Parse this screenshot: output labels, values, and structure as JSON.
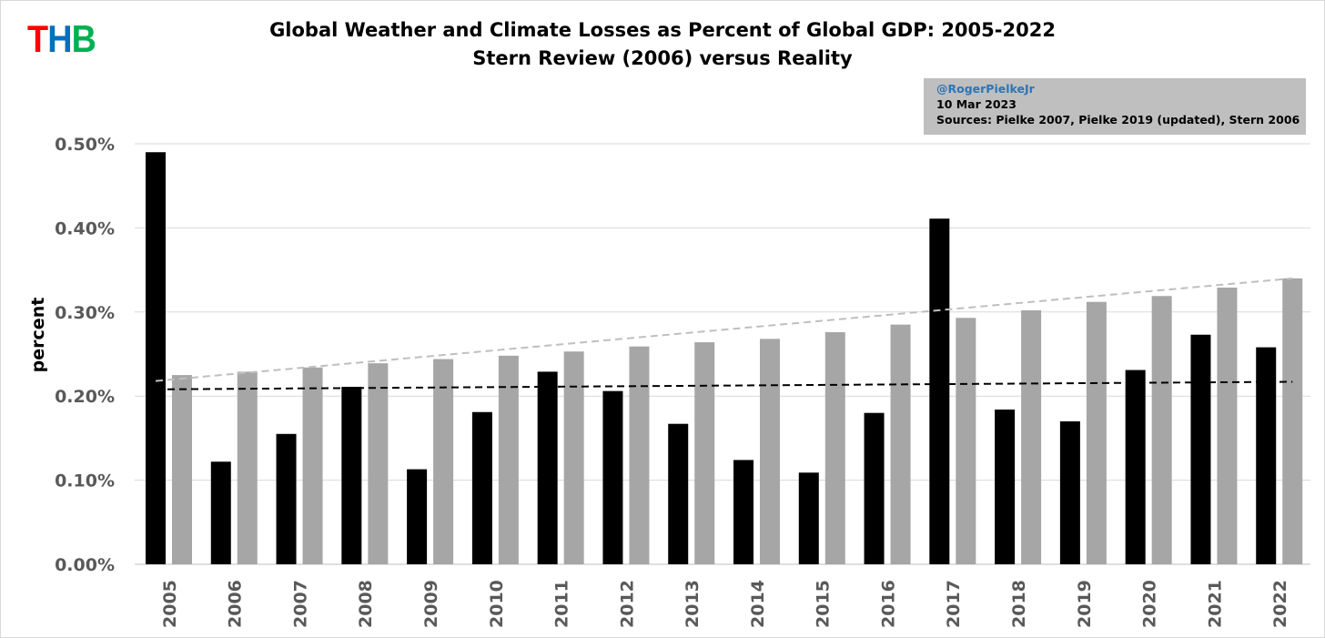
{
  "logo": {
    "t": "T",
    "h": "H",
    "b": "B",
    "colors": {
      "t": "#ff0000",
      "h": "#0070c0",
      "b": "#00b050"
    }
  },
  "chart_data": {
    "type": "bar",
    "title": "Global Weather and Climate Losses as Percent of Global GDP: 2005-2022",
    "subtitle": "Stern Review (2006) versus Reality",
    "xlabel": "",
    "ylabel": "percent",
    "ylim": [
      0,
      0.5
    ],
    "yticks": [
      "0.00%",
      "0.10%",
      "0.20%",
      "0.30%",
      "0.40%",
      "0.50%"
    ],
    "ytick_values": [
      0,
      0.1,
      0.2,
      0.3,
      0.4,
      0.5
    ],
    "grid": true,
    "categories": [
      "2005",
      "2006",
      "2007",
      "2008",
      "2009",
      "2010",
      "2011",
      "2012",
      "2013",
      "2014",
      "2015",
      "2016",
      "2017",
      "2018",
      "2019",
      "2020",
      "2021",
      "2022"
    ],
    "series": [
      {
        "key": "reality",
        "color": "#000000",
        "values": [
          0.49,
          0.122,
          0.155,
          0.211,
          0.113,
          0.181,
          0.229,
          0.206,
          0.167,
          0.124,
          0.109,
          0.18,
          0.411,
          0.184,
          0.17,
          0.231,
          0.273,
          0.258
        ],
        "trend": [
          0.208,
          0.217
        ],
        "trend_color": "#000000"
      },
      {
        "key": "stern",
        "color": "#a6a6a6",
        "values": [
          0.225,
          0.229,
          0.234,
          0.239,
          0.244,
          0.248,
          0.253,
          0.259,
          0.264,
          0.268,
          0.276,
          0.285,
          0.293,
          0.302,
          0.312,
          0.319,
          0.329,
          0.34
        ],
        "trend": [
          0.218,
          0.34
        ],
        "trend_color": "#bfbfbf"
      }
    ],
    "annotation": {
      "handle": "@RogerPielkeJr",
      "date": "10 Mar 2023",
      "sources": "Sources: Pielke 2007, Pielke 2019 (updated), Stern 2006"
    }
  }
}
